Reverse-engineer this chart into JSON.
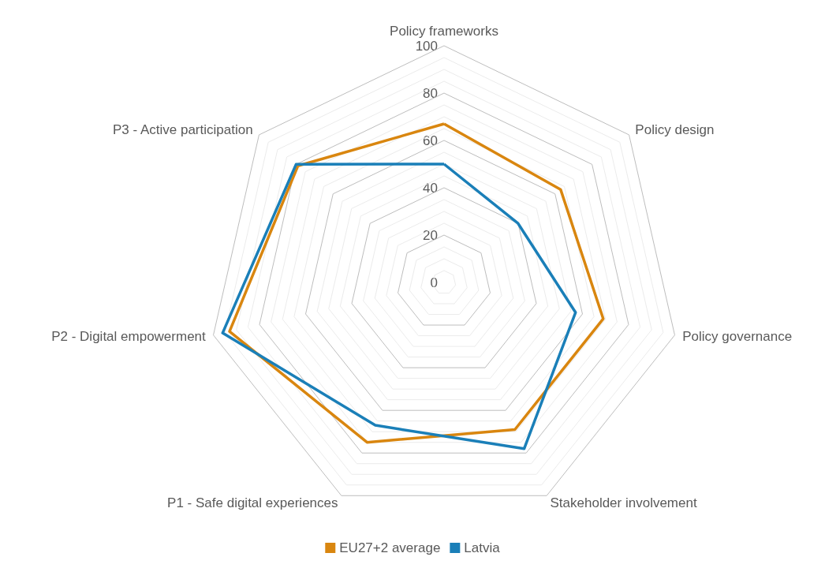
{
  "chart_data": {
    "type": "radar",
    "categories": [
      "Policy frameworks",
      "Policy design",
      "Policy governance",
      "Stakeholder involvement",
      "P1 - Safe digital experiences",
      "P2 - Digital empowerment",
      "P3 - Active participation"
    ],
    "series": [
      {
        "name": "EU27+2 average",
        "color": "#d9860f",
        "values": [
          67,
          63,
          69,
          69,
          75,
          93,
          79
        ]
      },
      {
        "name": "Latvia",
        "color": "#1a7fb8",
        "values": [
          50,
          40,
          57,
          78,
          67,
          96,
          80
        ]
      }
    ],
    "ylim": [
      0,
      100
    ],
    "yticks": [
      0,
      20,
      40,
      60,
      80,
      100
    ],
    "grid": true,
    "legend": "bottom",
    "marker": "none",
    "line_style": "solid"
  }
}
